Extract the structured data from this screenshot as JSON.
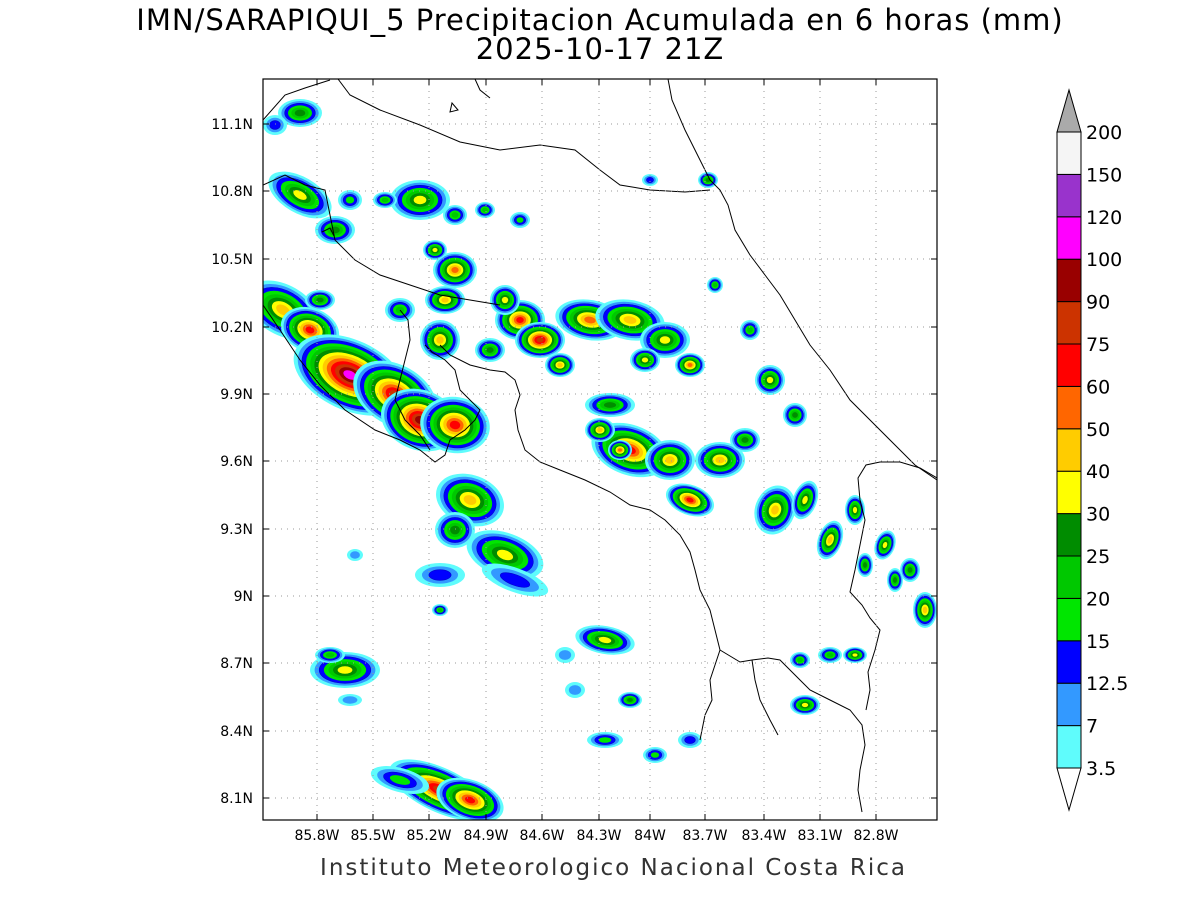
{
  "title": {
    "line1": "IMN/SARAPIQUI_5 Precipitacion Acumulada en 6 horas (mm)",
    "line2": "2025-10-17 21Z"
  },
  "footer": "Instituto Meteorologico Nacional Costa Rica",
  "map": {
    "lon_labels": [
      "85.8W",
      "85.5W",
      "85.2W",
      "84.9W",
      "84.6W",
      "84.3W",
      "84W",
      "83.7W",
      "83.4W",
      "83.1W",
      "82.8W"
    ],
    "lat_labels": [
      "11.1N",
      "10.8N",
      "10.5N",
      "10.2N",
      "9.9N",
      "9.6N",
      "9.3N",
      "9N",
      "8.7N",
      "8.4N",
      "8.1N"
    ],
    "grid": true
  },
  "colorbar": {
    "levels": [
      "3.5",
      "7",
      "12.5",
      "15",
      "20",
      "25",
      "30",
      "40",
      "50",
      "60",
      "75",
      "90",
      "100",
      "120",
      "150",
      "200"
    ],
    "colors": [
      "#5ffcfc",
      "#3399ff",
      "#0000ff",
      "#00e600",
      "#00c800",
      "#008c00",
      "#ffff00",
      "#ffcc00",
      "#ff6600",
      "#ff0000",
      "#cc3300",
      "#990000",
      "#ff00ff",
      "#9933cc",
      "#f5f5f5",
      "#aaaaaa"
    ]
  }
}
